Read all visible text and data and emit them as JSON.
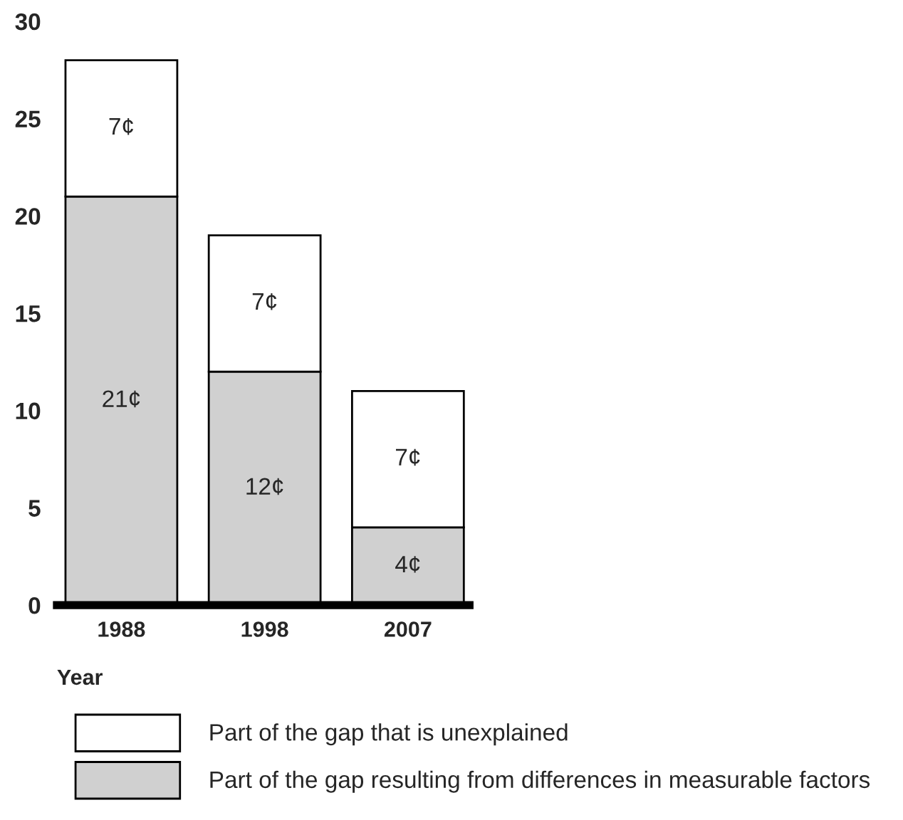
{
  "chart_data": {
    "type": "bar",
    "stacked": true,
    "xlabel": "Year",
    "categories": [
      "1988",
      "1998",
      "2007"
    ],
    "series": [
      {
        "name": "Part of the gap resulting from differences in measurable factors",
        "color": "#d0d0d0",
        "values": [
          21,
          12,
          4
        ],
        "value_labels": [
          "21¢",
          "12¢",
          "4¢"
        ]
      },
      {
        "name": "Part of the gap that is unexplained",
        "color": "#ffffff",
        "values": [
          7,
          7,
          7
        ],
        "value_labels": [
          "7¢",
          "7¢",
          "7¢"
        ]
      }
    ],
    "ylim": [
      0,
      30
    ],
    "yticks": [
      0,
      5,
      10,
      15,
      20,
      25,
      30
    ],
    "grid": false,
    "legend": "bottom"
  }
}
